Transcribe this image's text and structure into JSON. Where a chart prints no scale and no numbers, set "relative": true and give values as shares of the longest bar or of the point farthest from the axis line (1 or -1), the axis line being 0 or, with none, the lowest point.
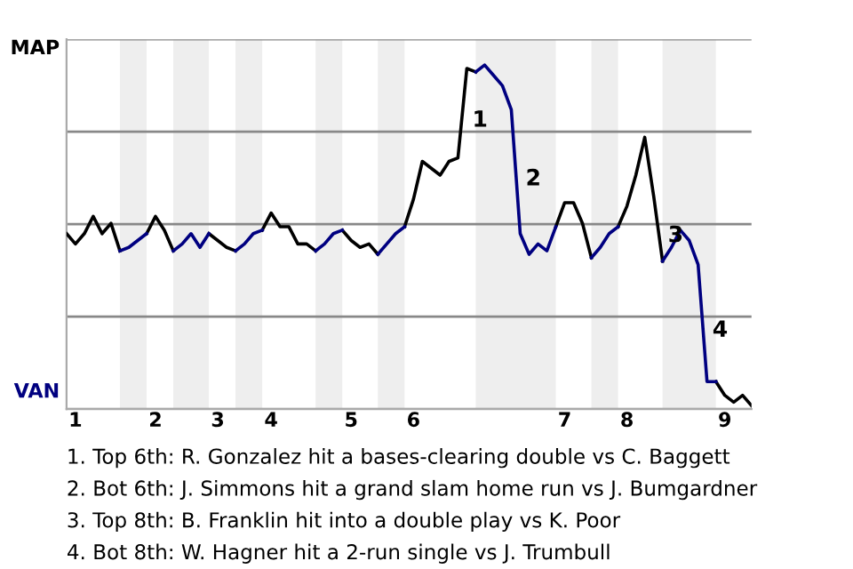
{
  "chart_data": {
    "type": "line",
    "relative": true,
    "categories": [
      null,
      "1",
      null,
      null,
      null,
      null,
      null,
      null,
      null,
      null,
      "2",
      null,
      null,
      null,
      null,
      null,
      null,
      "3",
      null,
      null,
      null,
      null,
      null,
      "4",
      null,
      null,
      null,
      null,
      null,
      null,
      null,
      null,
      "5",
      null,
      null,
      null,
      null,
      null,
      null,
      "6",
      null,
      null,
      null,
      null,
      null,
      null,
      null,
      null,
      null,
      null,
      null,
      null,
      null,
      null,
      null,
      null,
      "7",
      null,
      null,
      null,
      null,
      null,
      null,
      "8",
      null,
      null,
      null,
      null,
      null,
      null,
      null,
      null,
      null,
      null,
      "9",
      null,
      null,
      null
    ],
    "series": [
      {
        "color": "#000000",
        "values": [
          0.51,
          0.48,
          0.51,
          0.56,
          0.51,
          0.54,
          0.46,
          null,
          null,
          0.51,
          0.56,
          0.52,
          0.46,
          null,
          null,
          null,
          0.51,
          0.49,
          0.47,
          0.46,
          null,
          null,
          0.52,
          0.57,
          0.53,
          0.53,
          0.48,
          0.48,
          0.46,
          null,
          null,
          0.52,
          0.49,
          0.47,
          0.48,
          0.45,
          null,
          null,
          0.53,
          0.61,
          0.72,
          0.7,
          0.68,
          0.72,
          0.73,
          0.99,
          0.98,
          null,
          null,
          null,
          null,
          null,
          null,
          null,
          null,
          0.53,
          0.6,
          0.6,
          0.54,
          0.44,
          null,
          null,
          0.53,
          0.59,
          0.68,
          0.79,
          0.62,
          0.43,
          null,
          null,
          null,
          null,
          null,
          0.08,
          0.04,
          0.02,
          0.04,
          0.01
        ]
      },
      {
        "color": "#000080",
        "values": [
          null,
          null,
          null,
          null,
          null,
          null,
          0.46,
          0.47,
          0.49,
          0.51,
          null,
          null,
          0.46,
          0.48,
          0.51,
          0.47,
          0.51,
          null,
          null,
          0.46,
          0.48,
          0.51,
          0.52,
          null,
          null,
          null,
          null,
          null,
          0.46,
          0.48,
          0.51,
          0.52,
          null,
          null,
          null,
          0.45,
          0.48,
          0.51,
          0.53,
          null,
          null,
          null,
          null,
          null,
          null,
          null,
          0.98,
          1,
          0.97,
          0.94,
          0.87,
          0.51,
          0.45,
          0.48,
          0.46,
          0.53,
          null,
          null,
          null,
          0.44,
          0.47,
          0.51,
          0.53,
          null,
          null,
          null,
          null,
          0.43,
          0.47,
          0.52,
          0.49,
          0.42,
          0.08,
          0.08,
          null,
          null,
          null,
          null
        ]
      }
    ],
    "grid": "y",
    "annotations": [
      "MAP",
      "VAN",
      "1",
      "2",
      "3",
      "4",
      "1. Top 6th: R. Gonzalez hit a bases-clearing double vs C. Baggett",
      "2. Bot 6th: J. Simmons hit a grand slam home run vs J. Bumgardner",
      "3. Top 8th: B. Franklin hit into a double play vs K. Poor",
      "4. Bot 8th: W. Hagner hit a 2-run single vs J. Trumbull"
    ],
    "line_style": "solid",
    "marker": "none"
  }
}
